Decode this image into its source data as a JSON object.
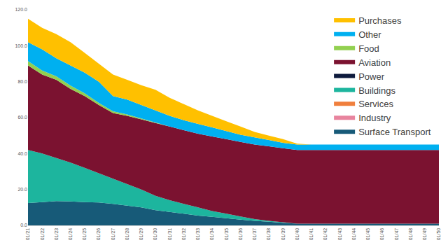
{
  "chart_data": {
    "type": "area",
    "stacked": true,
    "grid": false,
    "legend": "top-right",
    "categories": [
      "01/21",
      "01/22",
      "01/23",
      "01/24",
      "01/25",
      "01/26",
      "01/27",
      "01/28",
      "01/29",
      "01/30",
      "01/31",
      "01/32",
      "01/33",
      "01/34",
      "01/35",
      "01/36",
      "01/37",
      "01/38",
      "01/39",
      "01/40",
      "01/41",
      "01/42",
      "01/43",
      "01/44",
      "01/45",
      "01/46",
      "01/47",
      "01/48",
      "01/49",
      "01/50"
    ],
    "ylim": [
      0,
      120
    ],
    "yticks": [
      {
        "value": 0,
        "label": "0.0"
      },
      {
        "value": 20,
        "label": "20.0"
      },
      {
        "value": 40,
        "label": "40.0"
      },
      {
        "value": 60,
        "label": "60.0"
      },
      {
        "value": 80,
        "label": "80.0"
      },
      {
        "value": 100,
        "label": "100.0"
      },
      {
        "value": 120,
        "label": "120.0"
      }
    ],
    "series": [
      {
        "name": "Surface Transport",
        "color": "#175a78",
        "values": [
          12.5,
          13,
          13.5,
          13.3,
          13,
          12.8,
          12,
          11,
          10,
          8.5,
          7.5,
          6.5,
          5.5,
          4.8,
          4,
          3.2,
          2.5,
          2,
          1.5,
          1,
          1,
          1,
          1,
          1,
          1,
          1,
          1,
          1,
          1,
          1
        ]
      },
      {
        "name": "Industry",
        "color": "#e8849e",
        "values": [
          0,
          0,
          0,
          0,
          0,
          0,
          0,
          0,
          0,
          0,
          0,
          0,
          0,
          0,
          0,
          0,
          0,
          0,
          0,
          0,
          0,
          0,
          0,
          0,
          0,
          0,
          0,
          0,
          0,
          0
        ]
      },
      {
        "name": "Services",
        "color": "#f07f3c",
        "values": [
          0,
          0,
          0,
          0,
          0,
          0,
          0,
          0,
          0,
          0,
          0,
          0,
          0,
          0,
          0,
          0,
          0,
          0,
          0,
          0,
          0,
          0,
          0,
          0,
          0,
          0,
          0,
          0,
          0,
          0
        ]
      },
      {
        "name": "Buildings",
        "color": "#1db59e",
        "values": [
          29.5,
          27,
          24,
          21.7,
          19,
          16.2,
          14,
          12,
          10,
          8,
          6.5,
          5.5,
          4.5,
          3.2,
          2.5,
          1.8,
          1,
          0.5,
          0.3,
          0,
          0,
          0,
          0,
          0,
          0,
          0,
          0,
          0,
          0,
          0
        ]
      },
      {
        "name": "Power",
        "color": "#0e1b3d",
        "values": [
          0,
          0,
          0,
          0,
          0,
          0,
          0,
          0,
          0,
          0,
          0,
          0,
          0,
          0,
          0,
          0,
          0,
          0,
          0,
          0,
          0,
          0,
          0,
          0,
          0,
          0,
          0,
          0,
          0,
          0
        ]
      },
      {
        "name": "Aviation",
        "color": "#7b1230",
        "values": [
          47,
          44,
          43.5,
          41,
          40,
          38,
          36.5,
          38,
          39,
          40.5,
          41,
          41,
          41,
          41.5,
          41.5,
          41.5,
          41.5,
          41.5,
          41.2,
          41,
          41,
          41,
          41,
          41,
          41,
          41,
          41,
          41,
          41,
          41
        ]
      },
      {
        "name": "Food",
        "color": "#92d050",
        "values": [
          2.5,
          2.2,
          2,
          1.8,
          1.5,
          1.2,
          1,
          0.8,
          0.5,
          0.3,
          0,
          0,
          0,
          0,
          0,
          0,
          0,
          0,
          0,
          0,
          0,
          0,
          0,
          0,
          0,
          0,
          0,
          0,
          0,
          0
        ]
      },
      {
        "name": "Other",
        "color": "#00b0f0",
        "values": [
          10.5,
          11.8,
          10,
          11.2,
          11.5,
          11.8,
          8.5,
          8.2,
          7.5,
          6.7,
          6,
          5.5,
          5.5,
          5,
          4.5,
          4,
          4,
          3.5,
          3,
          3,
          3,
          3,
          3,
          3,
          3,
          3,
          3,
          3,
          3,
          3
        ]
      },
      {
        "name": "Purchases",
        "color": "#ffc000",
        "values": [
          13,
          12,
          13.5,
          13,
          11,
          10,
          12,
          11,
          11,
          11.5,
          10,
          9,
          7.5,
          6.5,
          5.5,
          4.5,
          3,
          2.5,
          2,
          0.5,
          0,
          0,
          0,
          0,
          0,
          0,
          0,
          0,
          0,
          0
        ]
      }
    ]
  }
}
